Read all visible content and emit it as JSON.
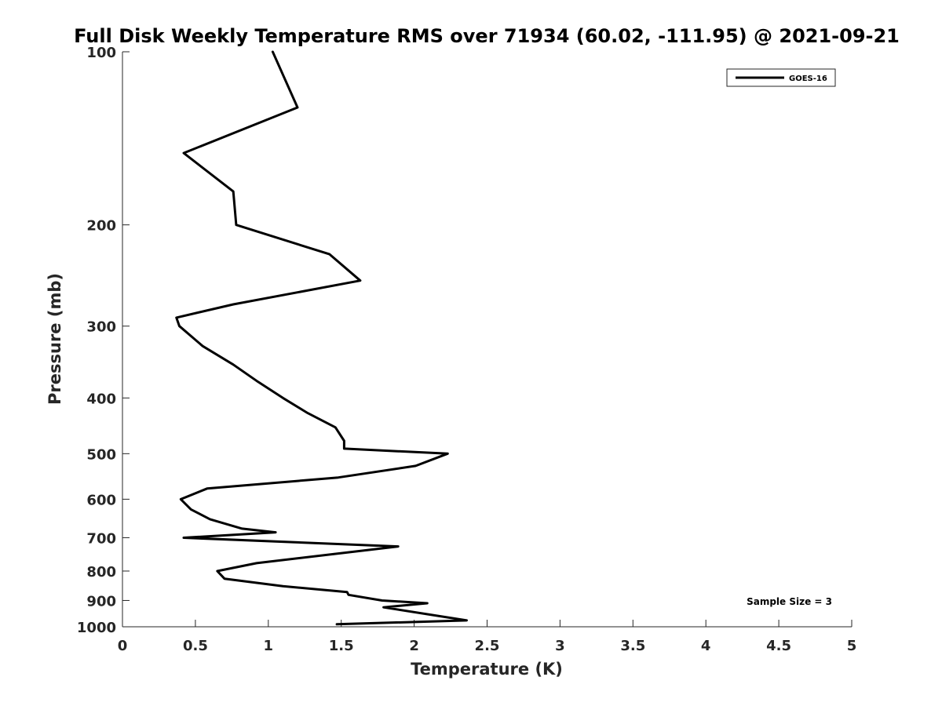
{
  "chart_data": {
    "type": "line",
    "title": "Full Disk Weekly Temperature RMS over 71934 (60.02, -111.95) @ 2021-09-21",
    "xlabel": "Temperature (K)",
    "ylabel": "Pressure (mb)",
    "xlim": [
      0,
      5
    ],
    "ylim": [
      1000,
      100
    ],
    "y_scale": "log",
    "x_ticks": [
      "0",
      "0.5",
      "1",
      "1.5",
      "2",
      "2.5",
      "3",
      "3.5",
      "4",
      "4.5",
      "5"
    ],
    "y_ticks": [
      "100",
      "200",
      "300",
      "400",
      "500",
      "600",
      "700",
      "800",
      "900",
      "1000"
    ],
    "grid": false,
    "legend_position": "top-right",
    "annotation": "Sample Size = 3",
    "series": [
      {
        "name": "GOES-16",
        "color": "#000000",
        "points": [
          [
            1.03,
            100
          ],
          [
            1.2,
            125
          ],
          [
            0.42,
            150
          ],
          [
            0.76,
            175
          ],
          [
            0.78,
            200
          ],
          [
            1.42,
            225
          ],
          [
            1.63,
            250
          ],
          [
            0.76,
            275
          ],
          [
            0.37,
            290
          ],
          [
            0.39,
            300
          ],
          [
            0.55,
            325
          ],
          [
            0.76,
            350
          ],
          [
            0.93,
            375
          ],
          [
            1.1,
            400
          ],
          [
            1.27,
            425
          ],
          [
            1.46,
            450
          ],
          [
            1.52,
            475
          ],
          [
            1.52,
            490
          ],
          [
            2.23,
            500
          ],
          [
            2.01,
            525
          ],
          [
            1.48,
            550
          ],
          [
            0.58,
            575
          ],
          [
            0.4,
            600
          ],
          [
            0.47,
            625
          ],
          [
            0.6,
            650
          ],
          [
            0.82,
            675
          ],
          [
            1.05,
            685
          ],
          [
            0.42,
            700
          ],
          [
            1.89,
            725
          ],
          [
            0.92,
            775
          ],
          [
            0.65,
            800
          ],
          [
            0.7,
            825
          ],
          [
            1.1,
            850
          ],
          [
            1.54,
            870
          ],
          [
            1.55,
            880
          ],
          [
            1.78,
            900
          ],
          [
            2.09,
            910
          ],
          [
            1.79,
            925
          ],
          [
            2.36,
            975
          ],
          [
            1.47,
            990
          ]
        ]
      }
    ]
  }
}
